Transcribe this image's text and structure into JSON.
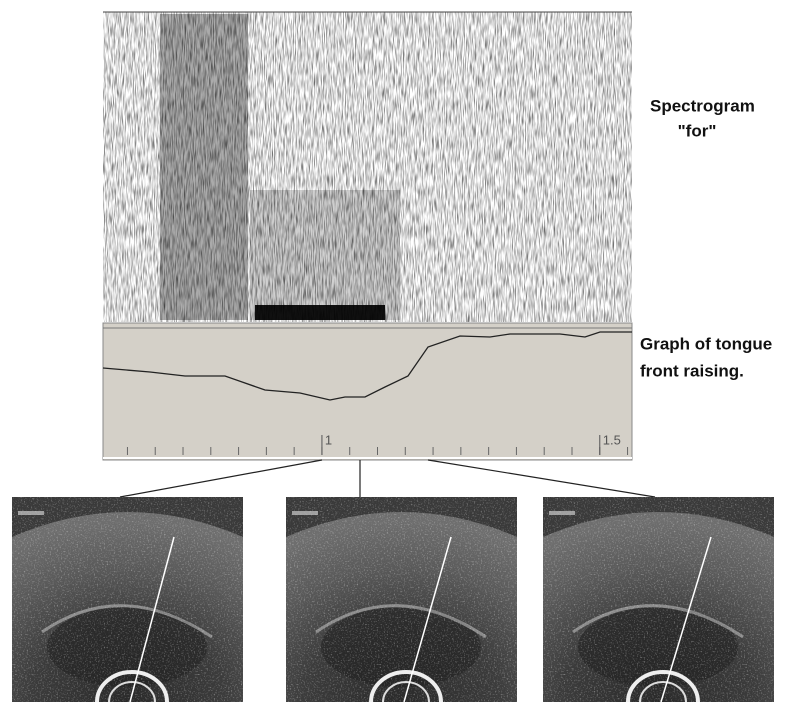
{
  "spectrogram": {
    "title": "Spectrogram",
    "word": "\"for\""
  },
  "graph": {
    "caption_line1": "Graph of tongue",
    "caption_line2": "front raising.",
    "xlim": [
      0.606,
      1.558
    ],
    "xticks": [
      1,
      1.5
    ]
  }
}
